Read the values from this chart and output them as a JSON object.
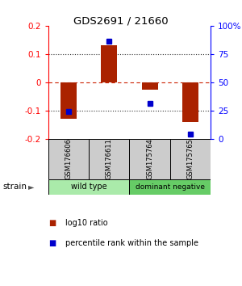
{
  "title": "GDS2691 / 21660",
  "samples": [
    "GSM176606",
    "GSM176611",
    "GSM175764",
    "GSM175765"
  ],
  "log10_ratio": [
    -0.13,
    0.13,
    -0.025,
    -0.14
  ],
  "percentile_rank": [
    24,
    86,
    31,
    4
  ],
  "groups": [
    {
      "label": "wild type",
      "samples": [
        0,
        1
      ],
      "color": "#aaeaaa"
    },
    {
      "label": "dominant negative",
      "samples": [
        2,
        3
      ],
      "color": "#66cc66"
    }
  ],
  "ylim": [
    -0.2,
    0.2
  ],
  "yticks": [
    -0.2,
    -0.1,
    0,
    0.1,
    0.2
  ],
  "ytick_labels": [
    "-0.2",
    "-0.1",
    "0",
    "0.1",
    "0.2"
  ],
  "y2ticks": [
    0,
    25,
    50,
    75,
    100
  ],
  "y2labels": [
    "0",
    "25",
    "50",
    "75",
    "100%"
  ],
  "bar_color": "#aa2200",
  "dot_color": "#0000cc",
  "zero_line_color": "#cc2200",
  "dotted_color": "#333333",
  "sample_box_color": "#cccccc",
  "background_color": "#ffffff"
}
